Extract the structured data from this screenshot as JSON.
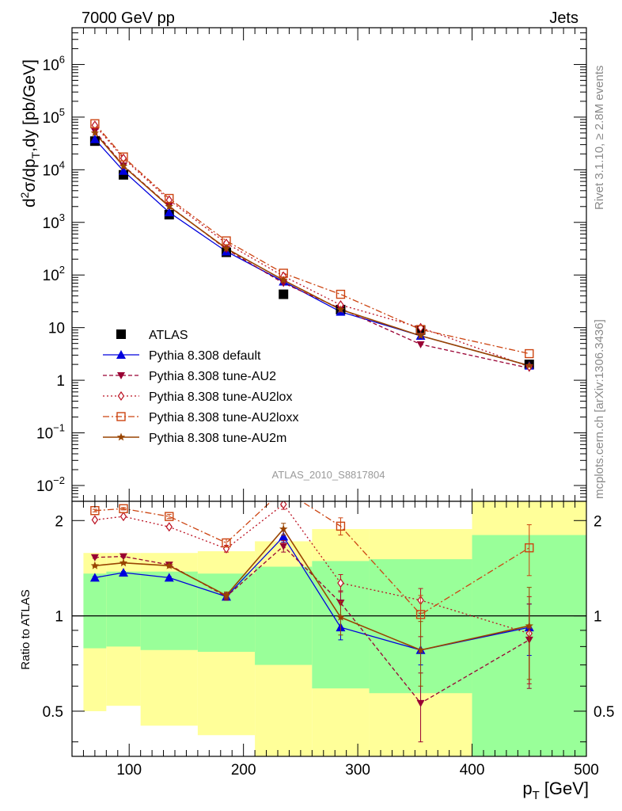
{
  "header": {
    "left": "7000 GeV pp",
    "right": "Jets"
  },
  "side_text": {
    "rivet": "Rivet 3.1.10, ≥ 2.8M events",
    "mcplots": "mcplots.cern.ch [arXiv:1306.3436]"
  },
  "analysis_label": "ATLAS_2010_S8817804",
  "colors": {
    "band_inner": "#99ff99",
    "band_outer": "#ffff99",
    "atlas": "#000000",
    "default": "#0000dd",
    "au2": "#990033",
    "au2lox": "#bb1122",
    "au2loxx": "#cc4411",
    "au2m": "#994400"
  },
  "chart_data": [
    {
      "type": "line",
      "panel": "main",
      "ylabel_parts": {
        "pre": "d",
        "sup2": "2",
        "sigma": "σ/dp",
        "subT": "T",
        "post": ",dy [pb/GeV]"
      },
      "yscale": "log",
      "ylim": [
        0.005,
        5000000
      ],
      "xlim": [
        50,
        500
      ],
      "yticks": [
        {
          "v": 0.01,
          "base": "10",
          "exp": "−2"
        },
        {
          "v": 0.1,
          "base": "10",
          "exp": "−1"
        },
        {
          "v": 1,
          "base": "1",
          "exp": ""
        },
        {
          "v": 10,
          "base": "10",
          "exp": ""
        },
        {
          "v": 100,
          "base": "10",
          "exp": "2"
        },
        {
          "v": 1000,
          "base": "10",
          "exp": "3"
        },
        {
          "v": 10000,
          "base": "10",
          "exp": "4"
        },
        {
          "v": 100000,
          "base": "10",
          "exp": "5"
        },
        {
          "v": 1000000,
          "base": "10",
          "exp": "6"
        }
      ],
      "x": [
        70,
        95,
        135,
        185,
        235,
        285,
        355,
        450
      ],
      "series": [
        {
          "key": "atlas",
          "name": "ATLAS",
          "values": [
            35000,
            8000,
            1400,
            270,
            43,
            22,
            9,
            2.0
          ]
        },
        {
          "key": "default",
          "name": "Pythia 8.308 default",
          "values": [
            38000,
            9500,
            1550,
            280,
            75,
            20,
            7,
            1.9
          ]
        },
        {
          "key": "au2",
          "name": "Pythia 8.308 tune-AU2",
          "values": [
            54000,
            12000,
            2050,
            310,
            70,
            23,
            4.8,
            1.7
          ]
        },
        {
          "key": "au2lox",
          "name": "Pythia 8.308 tune-AU2lox",
          "values": [
            70000,
            16500,
            2650,
            400,
            95,
            27,
            10,
            1.8
          ]
        },
        {
          "key": "au2loxx",
          "name": "Pythia 8.308 tune-AU2loxx",
          "values": [
            75000,
            17500,
            2850,
            445,
            108,
            43,
            9.2,
            3.2
          ]
        },
        {
          "key": "au2m",
          "name": "Pythia 8.308 tune-AU2m",
          "values": [
            50000,
            11700,
            2000,
            320,
            80,
            22,
            7,
            1.9
          ]
        }
      ]
    },
    {
      "type": "line",
      "panel": "ratio",
      "ylabel": "Ratio to ATLAS",
      "yscale": "log",
      "ylim": [
        0.36,
        2.3
      ],
      "xlim": [
        50,
        500
      ],
      "yticks": [
        {
          "v": 0.5,
          "label": "0.5"
        },
        {
          "v": 1,
          "label": "1"
        },
        {
          "v": 2,
          "label": "2"
        }
      ],
      "xticks": [
        {
          "v": 100,
          "label": "100"
        },
        {
          "v": 200,
          "label": "200"
        },
        {
          "v": 300,
          "label": "300"
        },
        {
          "v": 400,
          "label": "400"
        },
        {
          "v": 500,
          "label": "500"
        }
      ],
      "xlabel_parts": {
        "p": "p",
        "subT": "T",
        "unit": "[GeV]"
      },
      "bins": [
        {
          "lo": 60,
          "hi": 80,
          "inner": [
            0.79,
            1.36
          ],
          "outer": [
            0.5,
            1.58
          ]
        },
        {
          "lo": 80,
          "hi": 110,
          "inner": [
            0.8,
            1.38
          ],
          "outer": [
            0.52,
            1.58
          ]
        },
        {
          "lo": 110,
          "hi": 160,
          "inner": [
            0.78,
            1.38
          ],
          "outer": [
            0.45,
            1.58
          ]
        },
        {
          "lo": 160,
          "hi": 210,
          "inner": [
            0.77,
            1.36
          ],
          "outer": [
            0.42,
            1.6
          ]
        },
        {
          "lo": 210,
          "hi": 260,
          "inner": [
            0.7,
            1.43
          ],
          "outer": [
            0.3,
            1.72
          ]
        },
        {
          "lo": 260,
          "hi": 310,
          "inner": [
            0.59,
            1.49
          ],
          "outer": [
            0.3,
            1.88
          ]
        },
        {
          "lo": 310,
          "hi": 400,
          "inner": [
            0.57,
            1.51
          ],
          "outer": [
            0.3,
            1.88
          ]
        },
        {
          "lo": 400,
          "hi": 500,
          "inner": [
            0.3,
            1.8
          ],
          "outer": [
            0.3,
            2.5
          ]
        }
      ],
      "x": [
        70,
        95,
        135,
        185,
        235,
        285,
        355,
        450
      ],
      "series": [
        {
          "key": "default",
          "values": [
            1.32,
            1.37,
            1.32,
            1.15,
            1.78,
            0.92,
            0.78,
            0.92
          ],
          "err": [
            0.01,
            0.01,
            0.01,
            0.03,
            0.07,
            0.08,
            0.08,
            0.17
          ]
        },
        {
          "key": "au2",
          "values": [
            1.53,
            1.54,
            1.45,
            1.15,
            1.66,
            1.1,
            0.53,
            0.84
          ],
          "err": [
            0.01,
            0.01,
            0.01,
            0.03,
            0.07,
            0.1,
            0.13,
            0.25
          ]
        },
        {
          "key": "au2lox",
          "values": [
            2.01,
            2.06,
            1.91,
            1.63,
            2.25,
            1.27,
            1.12,
            0.88
          ],
          "err": [
            0.01,
            0.01,
            0.02,
            0.04,
            0.08,
            0.08,
            0.1,
            0.27
          ]
        },
        {
          "key": "au2loxx",
          "values": [
            2.15,
            2.18,
            2.06,
            1.7,
            2.5,
            1.92,
            1.01,
            1.64
          ],
          "err": [
            0.02,
            0.02,
            0.03,
            0.05,
            0.1,
            0.12,
            0.15,
            0.3
          ]
        },
        {
          "key": "au2m",
          "values": [
            1.44,
            1.47,
            1.44,
            1.16,
            1.88,
            0.99,
            0.78,
            0.93
          ],
          "err": [
            0.01,
            0.01,
            0.01,
            0.03,
            0.08,
            0.12,
            0.18,
            0.3
          ]
        }
      ]
    }
  ]
}
